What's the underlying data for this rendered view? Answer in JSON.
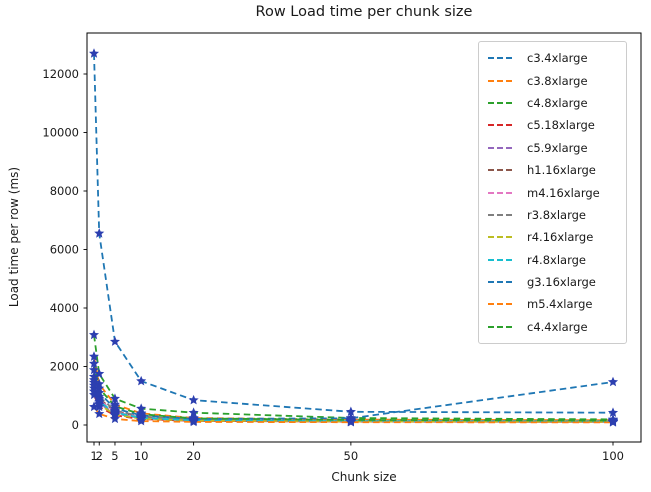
{
  "figure": {
    "background": "#ffffff",
    "text_color": "#1a1a1a"
  },
  "chart_data": {
    "type": "line",
    "title": "Row Load time per chunk size",
    "xlabel": "Chunk size",
    "ylabel": "Load time per row (ms)",
    "x": [
      1,
      2,
      5,
      10,
      20,
      50,
      100
    ],
    "xtick_labels": [
      "1",
      "2",
      "5",
      "10",
      "20",
      "50",
      "100"
    ],
    "yticks": [
      0,
      2000,
      4000,
      6000,
      8000,
      10000,
      12000
    ],
    "ytick_labels": [
      "0",
      "2000",
      "4000",
      "6000",
      "8000",
      "10000",
      "12000"
    ],
    "xlim": [
      -0.3,
      105.8
    ],
    "ylim": [
      -580,
      13400
    ],
    "grid": false,
    "legend_position": "upper right",
    "line_style": "dashed",
    "marker": {
      "shape": "star",
      "color": "#2c3fb0"
    },
    "series": [
      {
        "name": "c3.4xlarge",
        "color": "#1f77b4",
        "values": [
          12700,
          6550,
          2850,
          1500,
          850,
          450,
          420
        ]
      },
      {
        "name": "c3.8xlarge",
        "color": "#ff7f0e",
        "values": [
          2340,
          1400,
          700,
          400,
          240,
          185,
          165
        ]
      },
      {
        "name": "c4.8xlarge",
        "color": "#2ca02c",
        "values": [
          3080,
          1750,
          900,
          560,
          420,
          240,
          190
        ]
      },
      {
        "name": "c5.18xlarge",
        "color": "#d62728",
        "values": [
          1030,
          620,
          330,
          200,
          140,
          115,
          105
        ]
      },
      {
        "name": "c5.9xlarge",
        "color": "#9467bd",
        "values": [
          1250,
          740,
          390,
          230,
          150,
          125,
          112
        ]
      },
      {
        "name": "h1.16xlarge",
        "color": "#8c564b",
        "values": [
          1540,
          900,
          470,
          275,
          175,
          140,
          125
        ]
      },
      {
        "name": "m4.16xlarge",
        "color": "#e377c2",
        "values": [
          1450,
          850,
          445,
          260,
          168,
          135,
          120
        ]
      },
      {
        "name": "r3.8xlarge",
        "color": "#7f7f7f",
        "values": [
          1650,
          960,
          500,
          290,
          185,
          150,
          132
        ]
      },
      {
        "name": "r4.16xlarge",
        "color": "#bcbd22",
        "values": [
          1150,
          690,
          360,
          215,
          145,
          118,
          108
        ]
      },
      {
        "name": "r4.8xlarge",
        "color": "#17becf",
        "values": [
          1350,
          800,
          420,
          245,
          158,
          130,
          116
        ]
      },
      {
        "name": "g3.16xlarge",
        "color": "#1f77b4",
        "values": [
          1880,
          1100,
          560,
          330,
          210,
          230,
          1470
        ]
      },
      {
        "name": "m5.4xlarge",
        "color": "#ff7f0e",
        "values": [
          620,
          380,
          210,
          135,
          105,
          95,
          90
        ]
      },
      {
        "name": "c4.4xlarge",
        "color": "#2ca02c",
        "values": [
          2100,
          1250,
          640,
          370,
          225,
          175,
          155
        ]
      }
    ]
  }
}
